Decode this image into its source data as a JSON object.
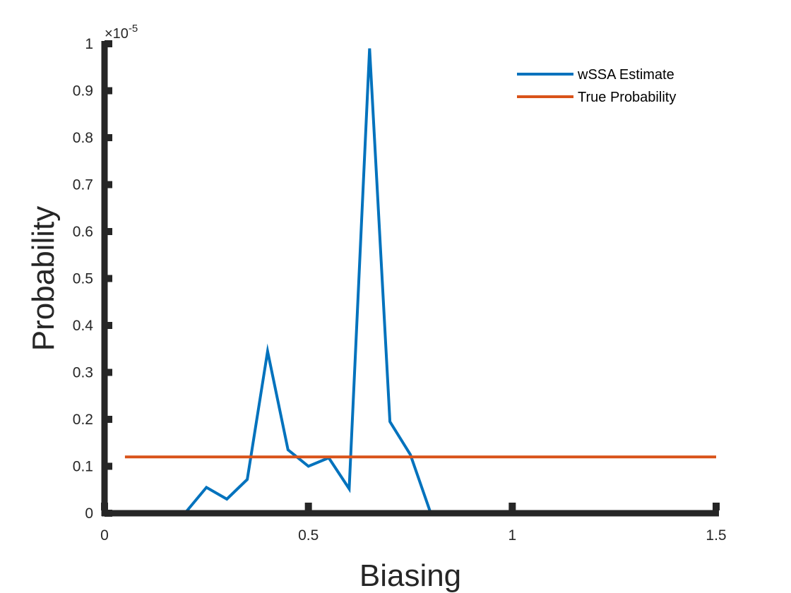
{
  "chart_data": {
    "type": "line",
    "title": "",
    "xlabel": "Biasing",
    "ylabel": "Probability",
    "xlim": [
      0,
      1.5
    ],
    "ylim": [
      0,
      1
    ],
    "y_exponent_label": "×10-5",
    "y_exponent_base": "×10",
    "y_exponent_power": "-5",
    "xticks": [
      0,
      0.5,
      1,
      1.5
    ],
    "xtick_labels": [
      "0",
      "0.5",
      "1",
      "1.5"
    ],
    "yticks": [
      0,
      0.1,
      0.2,
      0.3,
      0.4,
      0.5,
      0.6,
      0.7,
      0.8,
      0.9,
      1
    ],
    "ytick_labels": [
      "0",
      "0.1",
      "0.2",
      "0.3",
      "0.4",
      "0.5",
      "0.6",
      "0.7",
      "0.8",
      "0.9",
      "1"
    ],
    "grid": false,
    "legend_position": "top-right",
    "series": [
      {
        "name": "wSSA Estimate",
        "color": "#0072BD",
        "x": [
          0.05,
          0.1,
          0.15,
          0.2,
          0.25,
          0.3,
          0.35,
          0.4,
          0.45,
          0.5,
          0.55,
          0.6,
          0.65,
          0.7,
          0.75,
          0.8,
          0.85,
          0.9,
          0.95,
          1.0,
          1.05,
          1.1,
          1.15,
          1.2,
          1.25,
          1.3,
          1.35,
          1.4,
          1.45,
          1.5
        ],
        "y": [
          0,
          0,
          0,
          0.003,
          0.055,
          0.03,
          0.072,
          0.345,
          0.135,
          0.1,
          0.118,
          0.052,
          0.99,
          0.195,
          0.125,
          0,
          0,
          0,
          0,
          0,
          0,
          0,
          0,
          0,
          0,
          0,
          0,
          0,
          0,
          0
        ]
      },
      {
        "name": "True Probability",
        "color": "#D95319",
        "x": [
          0.05,
          1.5
        ],
        "y": [
          0.12,
          0.12
        ]
      }
    ]
  }
}
